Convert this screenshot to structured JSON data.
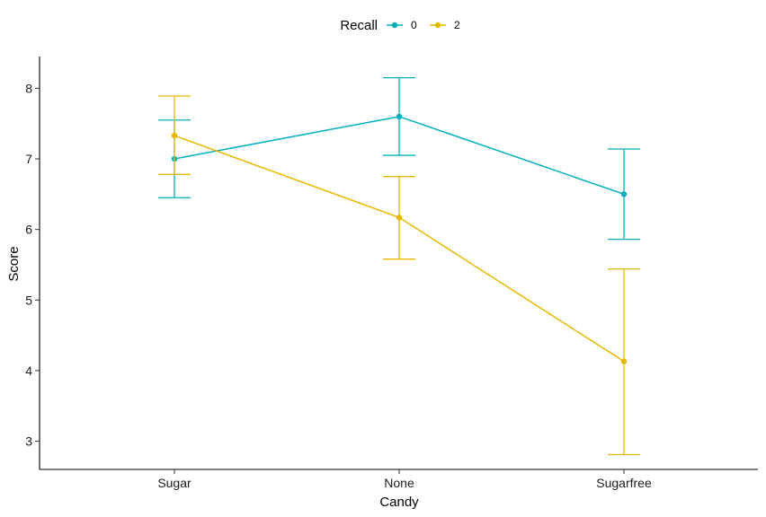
{
  "chart_data": {
    "type": "line",
    "title": "",
    "xlabel": "Candy",
    "ylabel": "Score",
    "categories": [
      "Sugar",
      "None",
      "Sugarfree"
    ],
    "ylim": [
      2.6,
      8.45
    ],
    "yticks": [
      3,
      4,
      5,
      6,
      7,
      8
    ],
    "grid": false,
    "legend": {
      "title": "Recall",
      "position": "top",
      "entries": [
        "0",
        "2"
      ]
    },
    "series": [
      {
        "name": "0",
        "color": "#00AFBB",
        "values": [
          7.0,
          7.6,
          6.5
        ],
        "error_low": [
          6.45,
          7.05,
          5.86
        ],
        "error_high": [
          7.55,
          8.15,
          7.14
        ]
      },
      {
        "name": "2",
        "color": "#E7B800",
        "values": [
          7.33,
          6.17,
          4.13
        ],
        "error_low": [
          6.78,
          5.58,
          2.81
        ],
        "error_high": [
          7.89,
          6.75,
          5.44
        ]
      }
    ]
  }
}
